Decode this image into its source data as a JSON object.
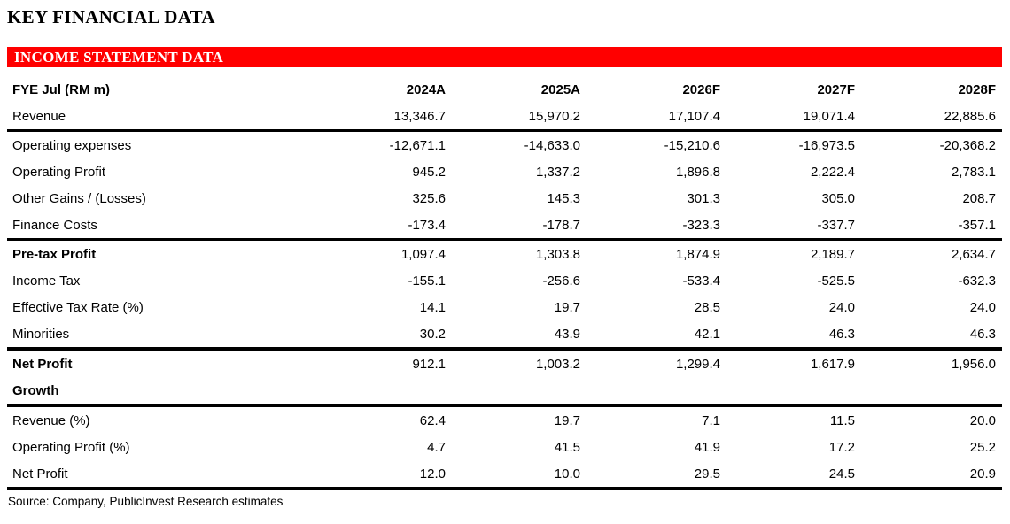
{
  "page_title": "KEY FINANCIAL DATA",
  "banner": {
    "label": "INCOME STATEMENT DATA",
    "bg_color": "#FF0000",
    "text_color": "#FFFFFF"
  },
  "table": {
    "header": [
      "FYE Jul (RM m)",
      "2024A",
      "2025A",
      "2026F",
      "2027F",
      "2028F"
    ],
    "rows": [
      {
        "label": "Revenue",
        "bold": false,
        "rule_above": false,
        "heavy": false,
        "values": [
          "13,346.7",
          "15,970.2",
          "17,107.4",
          "19,071.4",
          "22,885.6"
        ]
      },
      {
        "label": "Operating expenses",
        "bold": false,
        "rule_above": true,
        "heavy": false,
        "values": [
          "-12,671.1",
          "-14,633.0",
          "-15,210.6",
          "-16,973.5",
          "-20,368.2"
        ]
      },
      {
        "label": "Operating Profit",
        "bold": false,
        "rule_above": false,
        "heavy": false,
        "values": [
          "945.2",
          "1,337.2",
          "1,896.8",
          "2,222.4",
          "2,783.1"
        ]
      },
      {
        "label": "Other Gains / (Losses)",
        "bold": false,
        "rule_above": false,
        "heavy": false,
        "values": [
          "325.6",
          "145.3",
          "301.3",
          "305.0",
          "208.7"
        ]
      },
      {
        "label": "Finance Costs",
        "bold": false,
        "rule_above": false,
        "heavy": false,
        "values": [
          "-173.4",
          "-178.7",
          "-323.3",
          "-337.7",
          "-357.1"
        ]
      },
      {
        "label": "Pre-tax Profit",
        "bold": true,
        "rule_above": true,
        "heavy": false,
        "values": [
          "1,097.4",
          "1,303.8",
          "1,874.9",
          "2,189.7",
          "2,634.7"
        ]
      },
      {
        "label": "Income Tax",
        "bold": false,
        "rule_above": false,
        "heavy": false,
        "values": [
          "-155.1",
          "-256.6",
          "-533.4",
          "-525.5",
          "-632.3"
        ]
      },
      {
        "label": "Effective Tax Rate (%)",
        "bold": false,
        "rule_above": false,
        "heavy": false,
        "values": [
          "14.1",
          "19.7",
          "28.5",
          "24.0",
          "24.0"
        ]
      },
      {
        "label": "Minorities",
        "bold": false,
        "rule_above": false,
        "heavy": false,
        "values": [
          "30.2",
          "43.9",
          "42.1",
          "46.3",
          "46.3"
        ]
      },
      {
        "label": "Net Profit",
        "bold": true,
        "rule_above": true,
        "heavy": true,
        "values": [
          "912.1",
          "1,003.2",
          "1,299.4",
          "1,617.9",
          "1,956.0"
        ]
      },
      {
        "label": "Growth",
        "bold": true,
        "rule_above": false,
        "heavy": false,
        "values": [
          "",
          "",
          "",
          "",
          ""
        ]
      },
      {
        "label": "Revenue (%)",
        "bold": false,
        "rule_above": true,
        "heavy": true,
        "values": [
          "62.4",
          "19.7",
          "7.1",
          "11.5",
          "20.0"
        ]
      },
      {
        "label": "Operating Profit (%)",
        "bold": false,
        "rule_above": false,
        "heavy": false,
        "values": [
          "4.7",
          "41.5",
          "41.9",
          "17.2",
          "25.2"
        ]
      },
      {
        "label": "Net Profit",
        "bold": false,
        "rule_above": false,
        "heavy": false,
        "values": [
          "12.0",
          "10.0",
          "29.5",
          "24.5",
          "20.9"
        ]
      }
    ]
  },
  "source_note": "Source: Company, PublicInvest Research estimates"
}
